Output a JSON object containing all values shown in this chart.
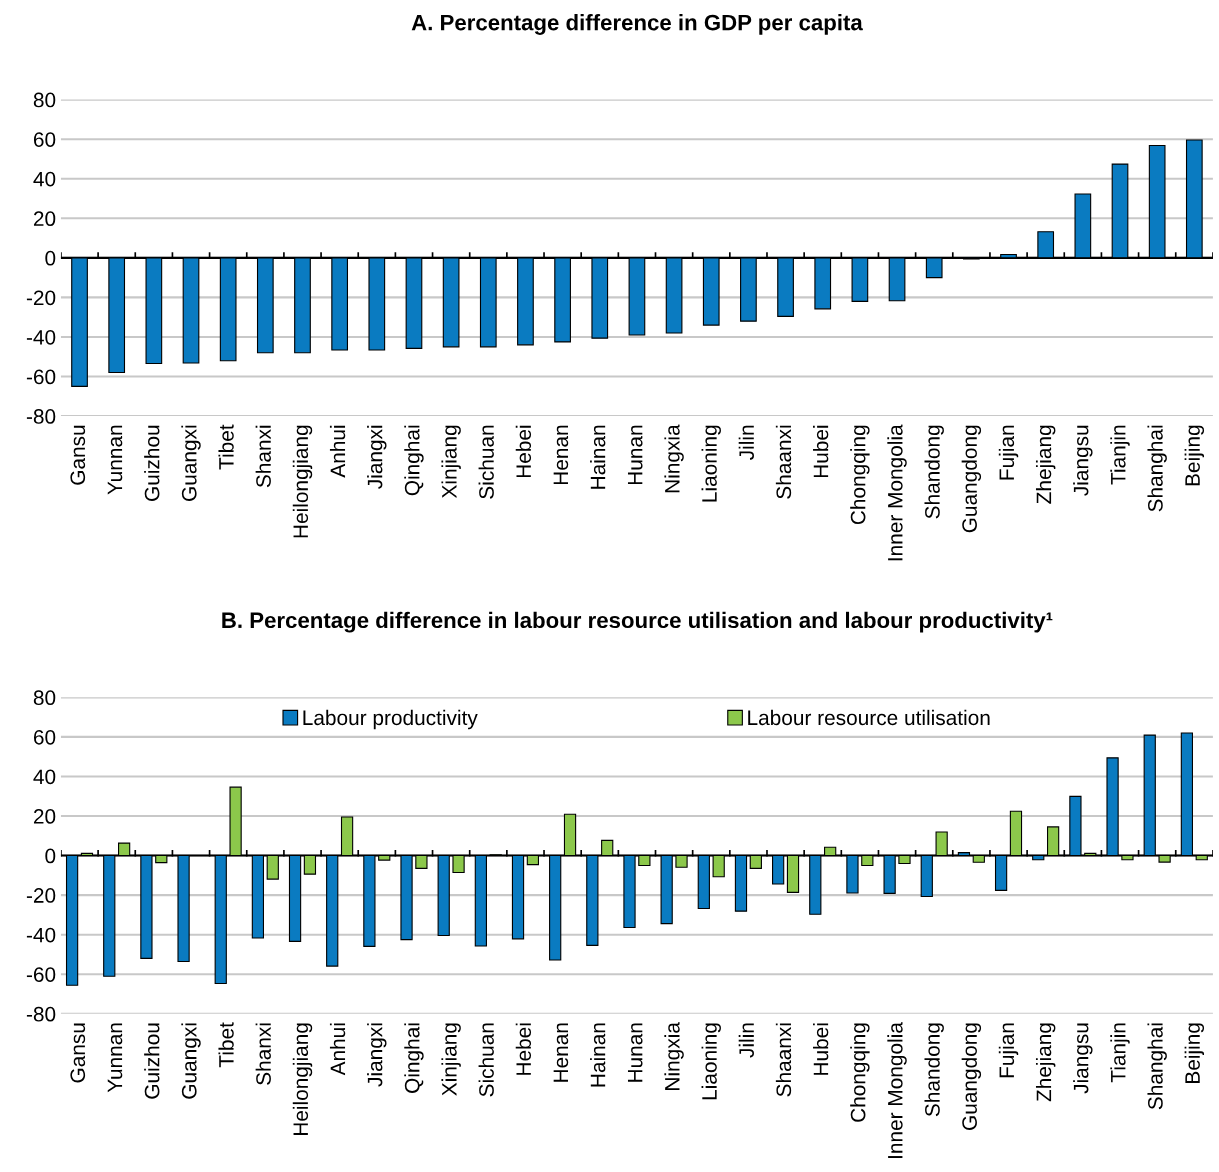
{
  "chart_data": [
    {
      "type": "bar",
      "title": "A. Percentage difference in GDP per capita",
      "categories": [
        "Gansu",
        "Yunnan",
        "Guizhou",
        "Guangxi",
        "Tibet",
        "Shanxi",
        "Heilongjiang",
        "Anhui",
        "Jiangxi",
        "Qinghai",
        "Xinjiang",
        "Sichuan",
        "Hebei",
        "Henan",
        "Hainan",
        "Hunan",
        "Ningxia",
        "Liaoning",
        "Jilin",
        "Shaanxi",
        "Hubei",
        "Chongqing",
        "Inner Mongolia",
        "Shandong",
        "Guangdong",
        "Fujian",
        "Zhejiang",
        "Jiangsu",
        "Tianjin",
        "Shanghai",
        "Beijing"
      ],
      "series": [
        {
          "color": "#0a7bc1",
          "values": [
            -65,
            -58,
            -53.4,
            -53.2,
            -52,
            -48,
            -48,
            -46.6,
            -46.6,
            -45.8,
            -45,
            -45,
            -44,
            -42.5,
            -40.6,
            -39,
            -38,
            -34,
            -32,
            -29.6,
            -25.8,
            -22,
            -21.7,
            -10,
            -0.6,
            1.7,
            13.2,
            32.3,
            47.4,
            56.8,
            59.6
          ]
        }
      ],
      "ylim": [
        -80,
        80
      ],
      "yticks": [
        -80,
        -60,
        -40,
        -20,
        0,
        20,
        40,
        60,
        80
      ],
      "grid": "y"
    },
    {
      "type": "bar",
      "title": "B. Percentage difference in labour resource utilisation and labour productivity¹",
      "categories": [
        "Gansu",
        "Yunnan",
        "Guizhou",
        "Guangxi",
        "Tibet",
        "Shanxi",
        "Heilongjiang",
        "Anhui",
        "Jiangxi",
        "Qinghai",
        "Xinjiang",
        "Sichuan",
        "Hebei",
        "Henan",
        "Hainan",
        "Hunan",
        "Ningxia",
        "Liaoning",
        "Jilin",
        "Shaanxi",
        "Hubei",
        "Chongqing",
        "Inner Mongolia",
        "Shandong",
        "Guangdong",
        "Fujian",
        "Zhejiang",
        "Jiangsu",
        "Tianjin",
        "Shanghai",
        "Beijing"
      ],
      "series": [
        {
          "name": "Labour productivity",
          "color": "#0a7bc1",
          "values": [
            -65.6,
            -61,
            -52,
            -53.6,
            -64.7,
            -41.7,
            -43.4,
            -55.9,
            -45.9,
            -42.5,
            -40.4,
            -45.7,
            -42.1,
            -52.8,
            -45.4,
            -36.4,
            -34.4,
            -26.8,
            -28.1,
            -14.4,
            -29.7,
            -18.9,
            -19.1,
            -20.7,
            1.5,
            -17.6,
            -2.1,
            29.9,
            49.4,
            60.9,
            62
          ]
        },
        {
          "name": "Labour resource utilisation",
          "color": "#8cc84b",
          "values": [
            1.1,
            6.3,
            -3.6,
            null,
            34.6,
            -11.9,
            -9.4,
            19.5,
            -2.3,
            -6.5,
            -8.6,
            0.4,
            -4.6,
            20.9,
            7.7,
            -5,
            -5.9,
            -10.7,
            -6.5,
            -18.6,
            4.2,
            -5,
            -4,
            11.9,
            -3.4,
            22.4,
            14.5,
            1.1,
            -2.1,
            -3.3,
            -2.1
          ]
        }
      ],
      "ylim": [
        -80,
        80
      ],
      "yticks": [
        -80,
        -60,
        -40,
        -20,
        0,
        20,
        40,
        60,
        80
      ],
      "grid": "y",
      "legend": "top"
    }
  ]
}
